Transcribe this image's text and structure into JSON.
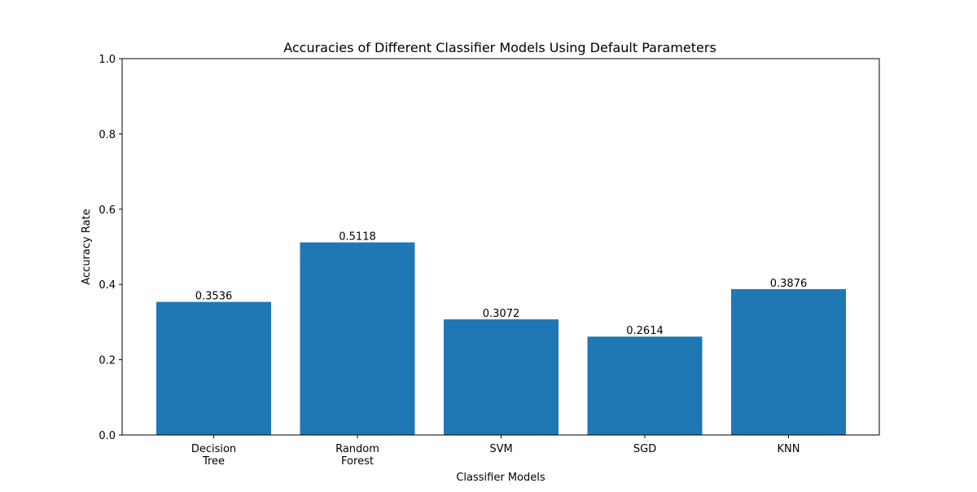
{
  "chart_data": {
    "type": "bar",
    "title": "Accuracies of Different Classifier Models Using Default Parameters",
    "xlabel": "Classifier Models",
    "ylabel": "Accuracy Rate",
    "categories": [
      [
        "Decision",
        "Tree"
      ],
      [
        "Random",
        "Forest"
      ],
      [
        "SVM"
      ],
      [
        "SGD"
      ],
      [
        "KNN"
      ]
    ],
    "values": [
      0.3536,
      0.5118,
      0.3072,
      0.2614,
      0.3876
    ],
    "value_labels": [
      "0.3536",
      "0.5118",
      "0.3072",
      "0.2614",
      "0.3876"
    ],
    "ylim": [
      0,
      1
    ],
    "yticks": [
      0.0,
      0.2,
      0.4,
      0.6,
      0.8,
      1.0
    ],
    "ytick_labels": [
      "0.0",
      "0.2",
      "0.4",
      "0.6",
      "0.8",
      "1.0"
    ],
    "bar_color": "#1f77b4",
    "grid": false,
    "legend": false
  }
}
